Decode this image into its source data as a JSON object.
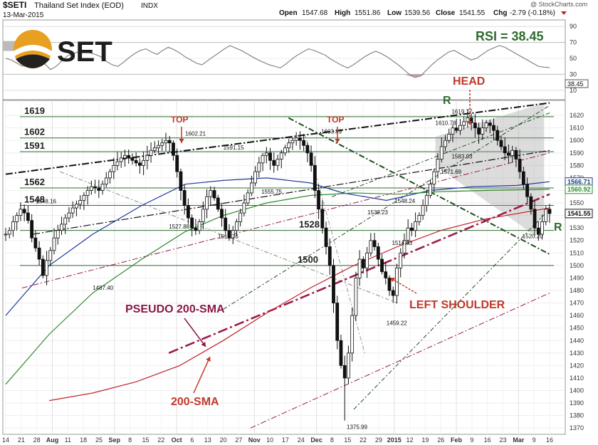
{
  "header": {
    "symbol": "$SETI",
    "name": "Thailand Set Index (EOD)",
    "exchange": "INDX",
    "date": "13-Mar-2015",
    "open_label": "Open",
    "open": "1547.68",
    "high_label": "High",
    "high": "1551.86",
    "low_label": "Low",
    "low": "1539.56",
    "close_label": "Close",
    "close": "1541.55",
    "chg_label": "Chg",
    "chg": "-2.79 (-0.18%)",
    "copyright": "@ StockCharts.com"
  },
  "logo": {
    "text": "SET"
  },
  "rsi": {
    "label": "RSI = 38.45",
    "value_box": "38.45",
    "ticks": [
      "90",
      "70",
      "50",
      "30",
      "10"
    ],
    "values": [
      50,
      48,
      44,
      40,
      46,
      52,
      49,
      43,
      36,
      40,
      47,
      53,
      56,
      58,
      60,
      57,
      55,
      52,
      46,
      42,
      40,
      45,
      51,
      56,
      60,
      62,
      58,
      55,
      60,
      64,
      61,
      57,
      52,
      48,
      44,
      42,
      47,
      52,
      57,
      62,
      66,
      63,
      60,
      56,
      52,
      48,
      45,
      42,
      40,
      38,
      43,
      49,
      54,
      58,
      62,
      60,
      57,
      54,
      49,
      45,
      41,
      38,
      42,
      47,
      52,
      56,
      59,
      56,
      52,
      47,
      42,
      36,
      30,
      26,
      28,
      35,
      42,
      48,
      53,
      58,
      60,
      56,
      52,
      48,
      50,
      55,
      60,
      63,
      66,
      64,
      60,
      56,
      52,
      48,
      44,
      40,
      39,
      38.45
    ]
  },
  "chart_data": {
    "type": "candlestick",
    "ylim": [
      1365,
      1632
    ],
    "y_ticks": [
      1370,
      1380,
      1390,
      1400,
      1410,
      1420,
      1430,
      1440,
      1450,
      1460,
      1470,
      1480,
      1490,
      1500,
      1510,
      1520,
      1530,
      1540,
      1550,
      1560,
      1570,
      1580,
      1590,
      1600,
      1610,
      1620
    ],
    "x_ticks": [
      {
        "label": "14",
        "bold": false
      },
      {
        "label": "21",
        "bold": false
      },
      {
        "label": "28",
        "bold": false
      },
      {
        "label": "Aug",
        "bold": true
      },
      {
        "label": "11",
        "bold": false
      },
      {
        "label": "18",
        "bold": false
      },
      {
        "label": "25",
        "bold": false
      },
      {
        "label": "Sep",
        "bold": true
      },
      {
        "label": "8",
        "bold": false
      },
      {
        "label": "15",
        "bold": false
      },
      {
        "label": "22",
        "bold": false
      },
      {
        "label": "Oct",
        "bold": true
      },
      {
        "label": "6",
        "bold": false
      },
      {
        "label": "13",
        "bold": false
      },
      {
        "label": "20",
        "bold": false
      },
      {
        "label": "27",
        "bold": false
      },
      {
        "label": "Nov",
        "bold": true
      },
      {
        "label": "10",
        "bold": false
      },
      {
        "label": "17",
        "bold": false
      },
      {
        "label": "24",
        "bold": false
      },
      {
        "label": "Dec",
        "bold": true
      },
      {
        "label": "8",
        "bold": false
      },
      {
        "label": "15",
        "bold": false
      },
      {
        "label": "22",
        "bold": false
      },
      {
        "label": "29",
        "bold": false
      },
      {
        "label": "2015",
        "bold": true
      },
      {
        "label": "12",
        "bold": false
      },
      {
        "label": "19",
        "bold": false
      },
      {
        "label": "26",
        "bold": false
      },
      {
        "label": "Feb",
        "bold": true
      },
      {
        "label": "9",
        "bold": false
      },
      {
        "label": "16",
        "bold": false
      },
      {
        "label": "23",
        "bold": false
      },
      {
        "label": "Mar",
        "bold": true
      },
      {
        "label": "9",
        "bold": false
      },
      {
        "label": "16",
        "bold": false
      }
    ],
    "closes": [
      1525,
      1528,
      1535,
      1540,
      1545,
      1542,
      1536,
      1522,
      1514,
      1505,
      1492,
      1504,
      1512,
      1522,
      1528,
      1533,
      1538,
      1542,
      1546,
      1549,
      1552,
      1556,
      1560,
      1563,
      1562,
      1560,
      1565,
      1570,
      1575,
      1580,
      1583,
      1586,
      1588,
      1586,
      1584,
      1582,
      1580,
      1584,
      1588,
      1592,
      1594,
      1596,
      1598,
      1600,
      1598,
      1588,
      1575,
      1560,
      1548,
      1538,
      1530,
      1528,
      1535,
      1545,
      1555,
      1560,
      1554,
      1545,
      1538,
      1528,
      1522,
      1528,
      1535,
      1542,
      1550,
      1558,
      1566,
      1575,
      1582,
      1588,
      1590,
      1584,
      1580,
      1585,
      1590,
      1594,
      1598,
      1600,
      1602,
      1600,
      1596,
      1590,
      1580,
      1560,
      1545,
      1530,
      1515,
      1500,
      1470,
      1440,
      1420,
      1410,
      1430,
      1460,
      1490,
      1505,
      1498,
      1510,
      1520,
      1515,
      1505,
      1495,
      1490,
      1480,
      1476,
      1498,
      1510,
      1520,
      1530,
      1528,
      1535,
      1540,
      1548,
      1556,
      1565,
      1575,
      1585,
      1595,
      1600,
      1605,
      1610,
      1608,
      1612,
      1615,
      1618,
      1614,
      1610,
      1605,
      1610,
      1614,
      1612,
      1608,
      1600,
      1595,
      1590,
      1588,
      1592,
      1585,
      1575,
      1565,
      1555,
      1545,
      1530,
      1525,
      1535,
      1545,
      1541.55
    ],
    "horizontal_levels": [
      {
        "value": 1619,
        "label": "1619"
      },
      {
        "value": 1602,
        "label": "1602"
      },
      {
        "value": 1591,
        "label": "1591"
      },
      {
        "value": 1562,
        "label": "1562"
      },
      {
        "value": 1548,
        "label": "1548"
      },
      {
        "value": 1528,
        "label": "1528"
      },
      {
        "value": 1500,
        "label": "1500"
      }
    ],
    "price_labels": [
      {
        "x": 0.16,
        "y": 1487.4,
        "text": "1487.40"
      },
      {
        "x": 0.055,
        "y": 1548.16,
        "text": "1548.16"
      },
      {
        "x": 0.33,
        "y": 1602.21,
        "text": "1602.21"
      },
      {
        "x": 0.3,
        "y": 1527.88,
        "text": "1527.88"
      },
      {
        "x": 0.39,
        "y": 1519.76,
        "text": "1519.76"
      },
      {
        "x": 0.4,
        "y": 1591.15,
        "text": "1591.15"
      },
      {
        "x": 0.47,
        "y": 1555.75,
        "text": "1555.75"
      },
      {
        "x": 0.58,
        "y": 1603.89,
        "text": "1603.89"
      },
      {
        "x": 0.627,
        "y": 1375.99,
        "text": "1375.99"
      },
      {
        "x": 0.665,
        "y": 1539.23,
        "text": "1539.23"
      },
      {
        "x": 0.7,
        "y": 1459.22,
        "text": "1459.22"
      },
      {
        "x": 0.71,
        "y": 1514.83,
        "text": "1514.83"
      },
      {
        "x": 0.715,
        "y": 1548.24,
        "text": "1548.24"
      },
      {
        "x": 0.8,
        "y": 1571.69,
        "text": "1571.69"
      },
      {
        "x": 0.79,
        "y": 1610.78,
        "text": "1610.78"
      },
      {
        "x": 0.82,
        "y": 1583.93,
        "text": "1583.93"
      },
      {
        "x": 0.82,
        "y": 1619.77,
        "text": "1619.77"
      },
      {
        "x": 0.95,
        "y": 1520.2,
        "text": "1520.20"
      }
    ],
    "right_value_boxes": [
      {
        "value": 1566.71,
        "text": "1566.71",
        "color": "#1e3a9a"
      },
      {
        "value": 1560.92,
        "text": "1560.92",
        "color": "#2e8b2e"
      },
      {
        "value": 1541.55,
        "text": "1541.55",
        "color": "#111111"
      }
    ],
    "annotations": {
      "top1": "TOP",
      "top2": "TOP",
      "head": "HEAD",
      "r_upper": "R",
      "r_right": "R",
      "left_shoulder": "LEFT SHOULDER",
      "pseudo_200_sma": "PSEUDO 200-SMA",
      "sma_200": "200-SMA"
    },
    "colors": {
      "candle_up": "#111111",
      "candle_down": "#111111",
      "sma50": "#1e3a9a",
      "sma_green": "#2e8b2e",
      "sma200": "#c0202a",
      "pseudo": "#9a1b4a",
      "annotation": "#c0392b",
      "green_label": "#2f6b2f",
      "purple_label": "#8a1846",
      "wedge_fill": "#9c9c9c"
    }
  }
}
